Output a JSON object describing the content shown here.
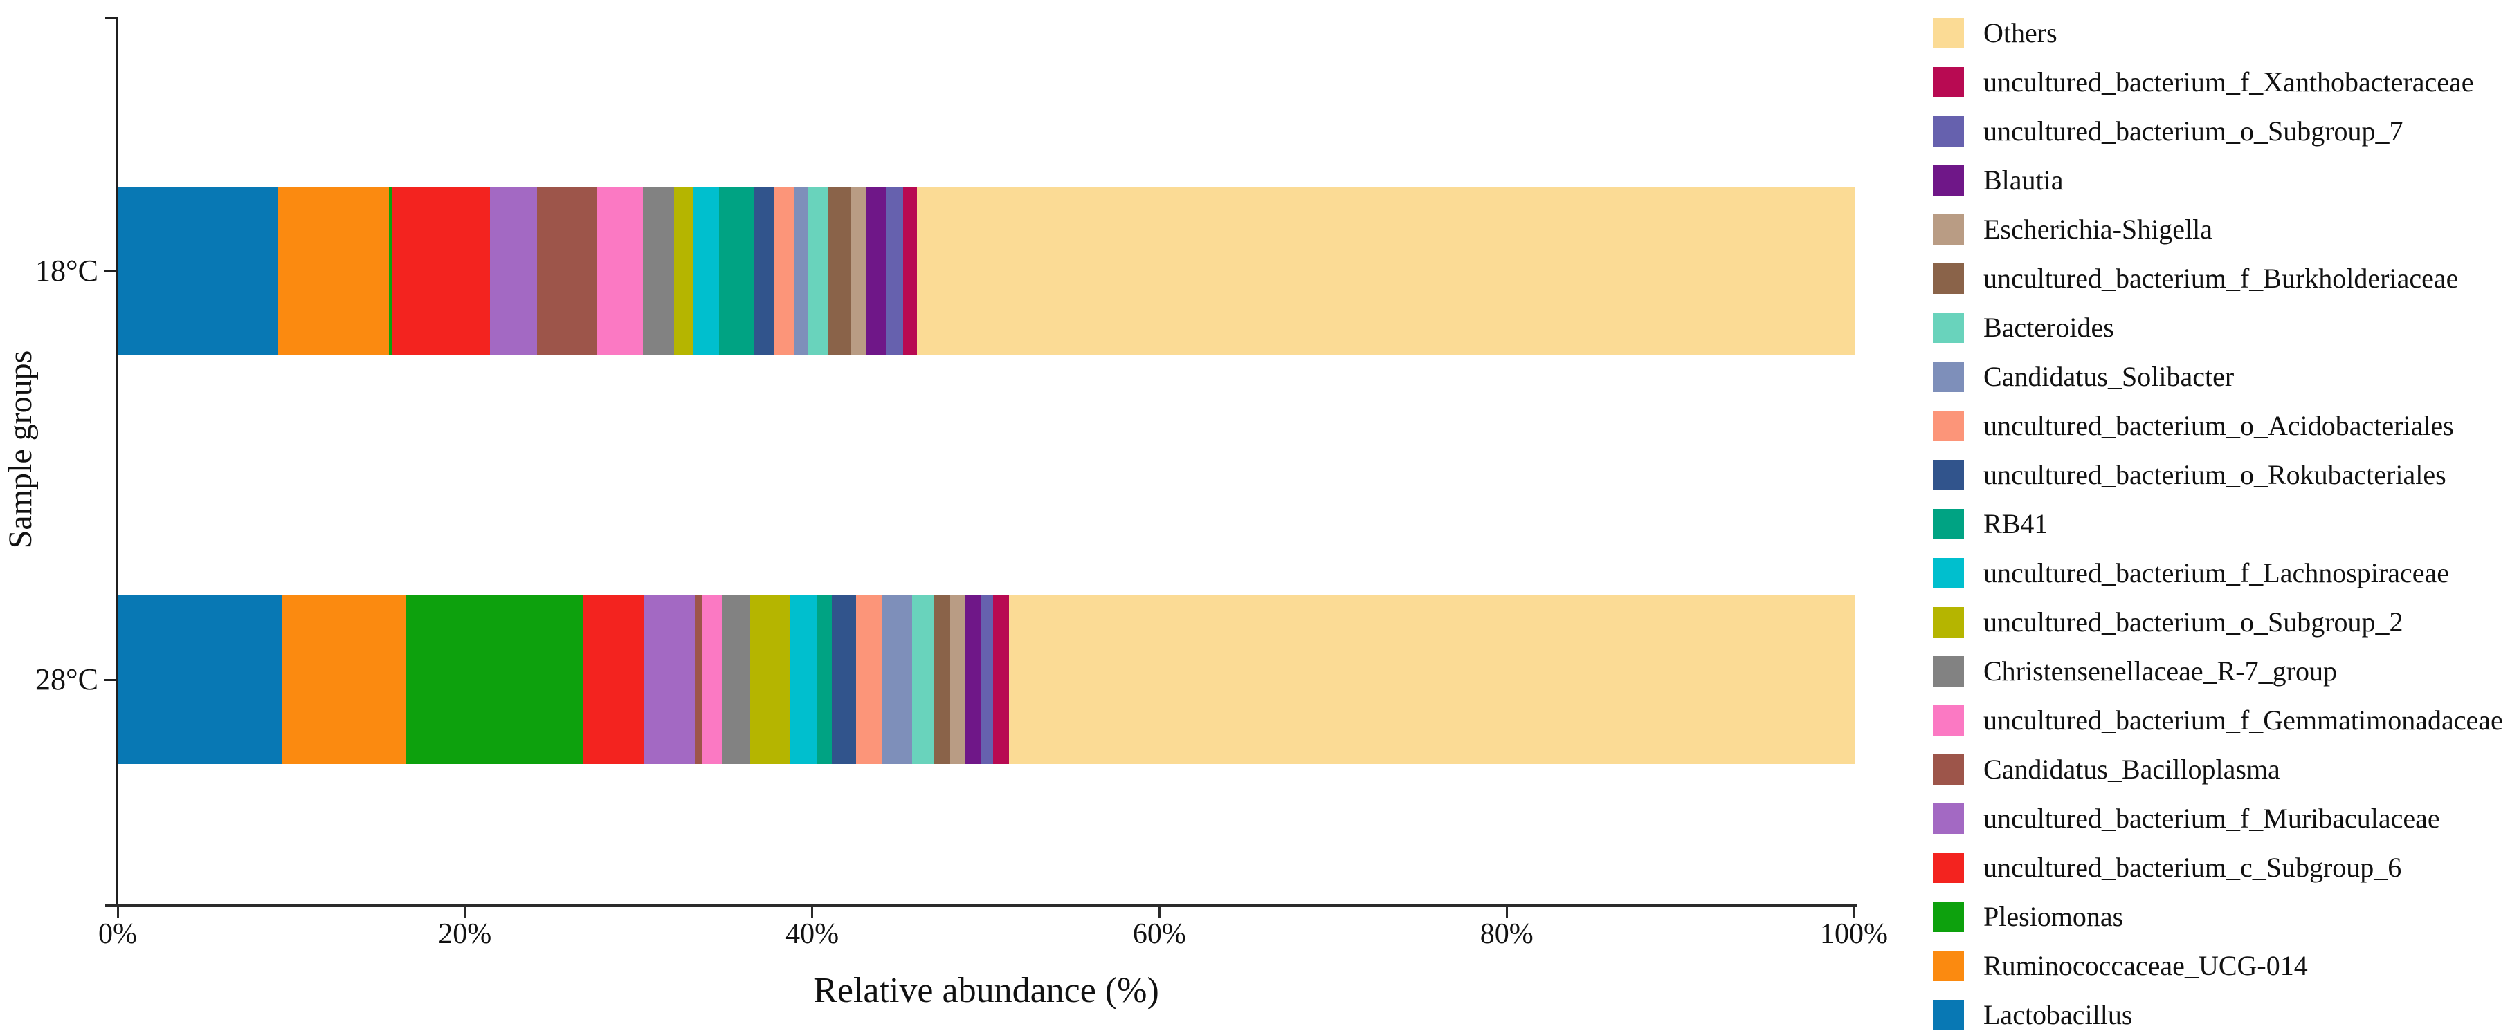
{
  "chart_data": {
    "type": "bar",
    "orientation": "horizontal",
    "stacked": true,
    "unit": "percent",
    "title": "",
    "xlabel": "Relative abundance (%)",
    "ylabel": "Sample groups",
    "categories": [
      "18°C",
      "28°C"
    ],
    "x_tick_labels": [
      "0%",
      "20%",
      "40%",
      "60%",
      "80%",
      "100%"
    ],
    "xlim": [
      0,
      100
    ],
    "grid": false,
    "legend_position": "right",
    "legend_order": "reversed (Others on top, Lactobacillus at bottom)",
    "series": [
      {
        "name": "Lactobacillus",
        "color": "#0878B4",
        "values": [
          9.2,
          9.4
        ]
      },
      {
        "name": "Ruminococcaceae_UCG-014",
        "color": "#FB8A10",
        "values": [
          6.4,
          7.2
        ]
      },
      {
        "name": "Plesiomonas",
        "color": "#0DA10D",
        "values": [
          0.2,
          10.2
        ]
      },
      {
        "name": "uncultured_bacterium_c_Subgroup_6",
        "color": "#F3231F",
        "values": [
          5.6,
          3.5
        ]
      },
      {
        "name": "uncultured_bacterium_f_Muribaculaceae",
        "color": "#A369C3",
        "values": [
          2.7,
          2.9
        ]
      },
      {
        "name": "Candidatus_Bacilloplasma",
        "color": "#9D554A",
        "values": [
          3.5,
          0.4
        ]
      },
      {
        "name": "uncultured_bacterium_f_Gemmatimonadaceae",
        "color": "#FB79C3",
        "values": [
          2.6,
          1.2
        ]
      },
      {
        "name": "Christensenellaceae_R-7_group",
        "color": "#828282",
        "values": [
          1.8,
          1.6
        ]
      },
      {
        "name": "uncultured_bacterium_o_Subgroup_2",
        "color": "#B5B500",
        "values": [
          1.1,
          2.3
        ]
      },
      {
        "name": "uncultured_bacterium_f_Lachnospiraceae",
        "color": "#00BFCE",
        "values": [
          1.5,
          1.5
        ]
      },
      {
        "name": "RB41",
        "color": "#00A383",
        "values": [
          2.0,
          0.9
        ]
      },
      {
        "name": "uncultured_bacterium_o_Rokubacteriales",
        "color": "#31548C",
        "values": [
          1.2,
          1.4
        ]
      },
      {
        "name": "uncultured_bacterium_o_Acidobacteriales",
        "color": "#FC9579",
        "values": [
          1.1,
          1.5
        ]
      },
      {
        "name": "Candidatus_Solibacter",
        "color": "#7E8FBA",
        "values": [
          0.8,
          1.7
        ]
      },
      {
        "name": "Bacteroides",
        "color": "#69D3BC",
        "values": [
          1.2,
          1.3
        ]
      },
      {
        "name": "uncultured_bacterium_f_Burkholderiaceae",
        "color": "#8A6349",
        "values": [
          1.3,
          0.9
        ]
      },
      {
        "name": "Escherichia-Shigella",
        "color": "#B99C84",
        "values": [
          0.9,
          0.9
        ]
      },
      {
        "name": "Blautia",
        "color": "#6F1788",
        "values": [
          1.1,
          0.9
        ]
      },
      {
        "name": "uncultured_bacterium_o_Subgroup_7",
        "color": "#6661AE",
        "values": [
          1.0,
          0.7
        ]
      },
      {
        "name": "uncultured_bacterium_f_Xanthobacteraceae",
        "color": "#B80A52",
        "values": [
          0.8,
          0.9
        ]
      },
      {
        "name": "Others",
        "color": "#FBDB95",
        "values": [
          54.0,
          48.7
        ]
      }
    ]
  }
}
